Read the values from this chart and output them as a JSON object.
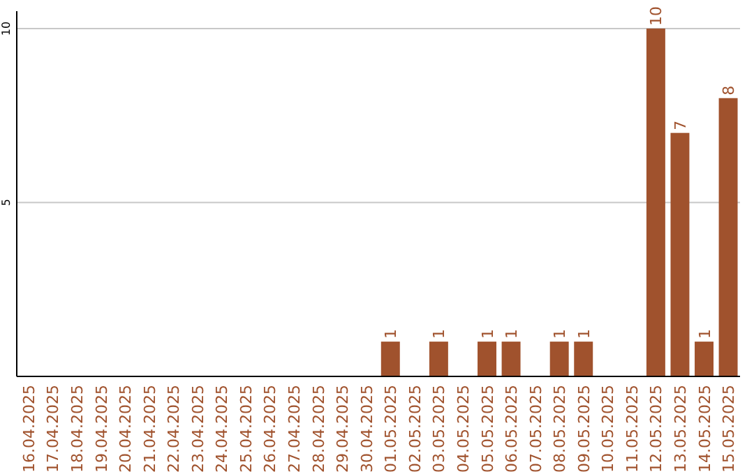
{
  "chart_data": {
    "type": "bar",
    "categories": [
      "16.04.2025",
      "17.04.2025",
      "18.04.2025",
      "19.04.2025",
      "20.04.2025",
      "21.04.2025",
      "22.04.2025",
      "23.04.2025",
      "24.04.2025",
      "25.04.2025",
      "26.04.2025",
      "27.04.2025",
      "28.04.2025",
      "29.04.2025",
      "30.04.2025",
      "01.05.2025",
      "02.05.2025",
      "03.05.2025",
      "04.05.2025",
      "05.05.2025",
      "06.05.2025",
      "07.05.2025",
      "08.05.2025",
      "09.05.2025",
      "10.05.2025",
      "11.05.2025",
      "12.05.2025",
      "13.05.2025",
      "14.05.2025",
      "15.05.2025"
    ],
    "values": [
      0,
      0,
      0,
      0,
      0,
      0,
      0,
      0,
      0,
      0,
      0,
      0,
      0,
      0,
      0,
      1,
      0,
      1,
      0,
      1,
      1,
      0,
      1,
      1,
      0,
      0,
      10,
      7,
      1,
      8
    ],
    "value_labels": [
      null,
      null,
      null,
      null,
      null,
      null,
      null,
      null,
      null,
      null,
      null,
      null,
      null,
      null,
      null,
      "1",
      null,
      "1",
      null,
      "1",
      "1",
      null,
      "1",
      "1",
      null,
      null,
      "10",
      "7",
      "1",
      "8"
    ],
    "color": "#a0522d",
    "ylim": [
      0,
      10.5
    ],
    "yticks": [
      5,
      10
    ],
    "grid": "y"
  }
}
